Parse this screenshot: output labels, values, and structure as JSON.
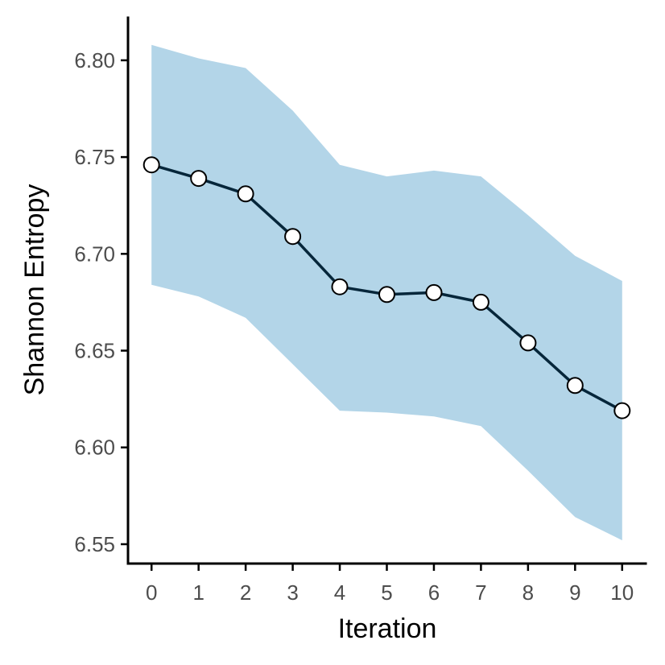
{
  "chart_data": {
    "type": "line",
    "xlabel": "Iteration",
    "ylabel": "Shannon Entropy",
    "x": [
      0,
      1,
      2,
      3,
      4,
      5,
      6,
      7,
      8,
      9,
      10
    ],
    "series": [
      {
        "values": [
          6.746,
          6.739,
          6.731,
          6.709,
          6.683,
          6.679,
          6.68,
          6.675,
          6.654,
          6.632,
          6.619
        ],
        "lower": [
          6.684,
          6.678,
          6.667,
          6.643,
          6.619,
          6.618,
          6.616,
          6.611,
          6.588,
          6.564,
          6.552
        ],
        "upper": [
          6.808,
          6.801,
          6.796,
          6.774,
          6.746,
          6.74,
          6.743,
          6.74,
          6.72,
          6.699,
          6.686
        ]
      }
    ],
    "xticks": [
      "0",
      "1",
      "2",
      "3",
      "4",
      "5",
      "6",
      "7",
      "8",
      "9",
      "10"
    ],
    "yticks": [
      "6.55",
      "6.60",
      "6.65",
      "6.70",
      "6.75",
      "6.80"
    ],
    "xlim": [
      -0.5,
      10.5
    ],
    "ylim": [
      6.54,
      6.822
    ],
    "grid": false,
    "legend": "none",
    "colors": {
      "line": "#06263a",
      "ribbon": "#b3d5e8",
      "marker_fill": "#ffffff",
      "marker_stroke": "#000000",
      "axis": "#000000",
      "tick_text": "#4d4d4d"
    }
  }
}
